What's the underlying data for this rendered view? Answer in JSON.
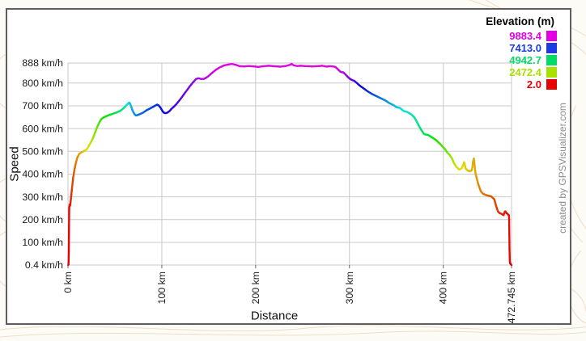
{
  "page": {
    "background_color": "#fdfbf5",
    "watermark_line_color": "#e7d5b8"
  },
  "chart": {
    "border_color": "#5e5e5e",
    "background_color": "#ffffff",
    "gridline_color": "#c9c9c9",
    "credit": "created by GPSVisualizer.com",
    "credit_color": "#8e8e8e"
  },
  "legend": {
    "title": "Elevation (m)",
    "items": [
      {
        "value": "9883.4",
        "color": "#E400E4"
      },
      {
        "value": "7413.0",
        "color": "#1C3AE6"
      },
      {
        "value": "4942.7",
        "color": "#00DC64"
      },
      {
        "value": "2472.4",
        "color": "#A8E000"
      },
      {
        "value": "2.0",
        "color": "#E60000"
      }
    ]
  },
  "chart_data": {
    "type": "line",
    "title": "",
    "xlabel": "Distance",
    "ylabel": "Speed",
    "x_unit": "km",
    "y_unit": "km/h",
    "xlim": [
      0,
      472.745
    ],
    "ylim": [
      0.4,
      888
    ],
    "grid": true,
    "legend_position": "top-right-inside",
    "color_by": "Elevation (m)",
    "color_ramp": {
      "domain": [
        2.0,
        9883.4
      ],
      "hue_range_deg": [
        0,
        300
      ],
      "low_color": "red",
      "high_color": "magenta"
    },
    "x_ticks": [
      {
        "value": 0,
        "label": "0 km"
      },
      {
        "value": 100,
        "label": "100 km"
      },
      {
        "value": 200,
        "label": "200 km"
      },
      {
        "value": 300,
        "label": "300 km"
      },
      {
        "value": 400,
        "label": "400 km"
      },
      {
        "value": 472.745,
        "label": "472.745 km"
      }
    ],
    "y_ticks": [
      {
        "value": 0.4,
        "label": "0.4 km/h"
      },
      {
        "value": 100,
        "label": "100 km/h"
      },
      {
        "value": 200,
        "label": "200 km/h"
      },
      {
        "value": 300,
        "label": "300 km/h"
      },
      {
        "value": 400,
        "label": "400 km/h"
      },
      {
        "value": 500,
        "label": "500 km/h"
      },
      {
        "value": 600,
        "label": "600 km/h"
      },
      {
        "value": 700,
        "label": "700 km/h"
      },
      {
        "value": 800,
        "label": "800 km/h"
      },
      {
        "value": 888,
        "label": "888 km/h"
      }
    ],
    "point_format": [
      "distance_km",
      "speed_kmh",
      "elevation_m"
    ],
    "points": [
      [
        0.2,
        0.4,
        2
      ],
      [
        0.6,
        3,
        2
      ],
      [
        0.9,
        60,
        5
      ],
      [
        1.1,
        170,
        20
      ],
      [
        1.3,
        252,
        60
      ],
      [
        1.8,
        266,
        110
      ],
      [
        2.3,
        262,
        160
      ],
      [
        2.8,
        278,
        250
      ],
      [
        3.4,
        302,
        340
      ],
      [
        4.3,
        338,
        480
      ],
      [
        5.5,
        384,
        650
      ],
      [
        6.5,
        410,
        780
      ],
      [
        7.5,
        432,
        900
      ],
      [
        8.6,
        452,
        1030
      ],
      [
        9.7,
        470,
        1150
      ],
      [
        11,
        481,
        1260
      ],
      [
        12,
        489,
        1350
      ],
      [
        13.7,
        494,
        1480
      ],
      [
        15.5,
        498,
        1600
      ],
      [
        17,
        501,
        1700
      ],
      [
        18.4,
        504,
        1800
      ],
      [
        19.5,
        508,
        1890
      ],
      [
        20.6,
        512,
        1980
      ],
      [
        21.6,
        519,
        2070
      ],
      [
        22.6,
        527,
        2150
      ],
      [
        23.7,
        535,
        2250
      ],
      [
        24.8,
        543,
        2350
      ],
      [
        25.9,
        552,
        2450
      ],
      [
        27,
        562,
        2550
      ],
      [
        28.1,
        574,
        2680
      ],
      [
        29.2,
        586,
        2800
      ],
      [
        30.2,
        597,
        2930
      ],
      [
        31.3,
        608,
        3050
      ],
      [
        32.3,
        617,
        3180
      ],
      [
        33.3,
        626,
        3300
      ],
      [
        34.4,
        634,
        3430
      ],
      [
        35.5,
        641,
        3550
      ],
      [
        37,
        646,
        3680
      ],
      [
        38.5,
        650,
        3800
      ],
      [
        40.6,
        654,
        3950
      ],
      [
        42.8,
        658,
        4100
      ],
      [
        44.9,
        661,
        4230
      ],
      [
        47,
        664,
        4350
      ],
      [
        49.2,
        667,
        4480
      ],
      [
        51.4,
        670,
        4600
      ],
      [
        53.5,
        674,
        4750
      ],
      [
        55.7,
        678,
        4900
      ],
      [
        57.1,
        682,
        5030
      ],
      [
        58.5,
        687,
        5150
      ],
      [
        59.9,
        692,
        5300
      ],
      [
        61.3,
        698,
        5450
      ],
      [
        62.4,
        703,
        5600
      ],
      [
        63.6,
        708,
        5750
      ],
      [
        64.5,
        712,
        5880
      ],
      [
        65.4,
        714,
        6000
      ],
      [
        66.4,
        708,
        6150
      ],
      [
        67.6,
        694,
        6300
      ],
      [
        68.8,
        680,
        6450
      ],
      [
        70.2,
        668,
        6600
      ],
      [
        71.2,
        662,
        6680
      ],
      [
        72.3,
        658,
        6750
      ],
      [
        74,
        659,
        6830
      ],
      [
        75.8,
        662,
        6900
      ],
      [
        78,
        666,
        6980
      ],
      [
        80,
        670,
        7050
      ],
      [
        82.2,
        676,
        7130
      ],
      [
        84.3,
        682,
        7200
      ],
      [
        86.5,
        686,
        7280
      ],
      [
        88.7,
        691,
        7350
      ],
      [
        91,
        696,
        7420
      ],
      [
        93,
        701,
        7480
      ],
      [
        95,
        705,
        7550
      ],
      [
        96.5,
        702,
        7620
      ],
      [
        98,
        695,
        7700
      ],
      [
        99.5,
        686,
        7790
      ],
      [
        100.8,
        676,
        7870
      ],
      [
        102.2,
        670,
        7950
      ],
      [
        103.4,
        668,
        8000
      ],
      [
        104.5,
        668,
        8050
      ],
      [
        105.9,
        670,
        8100
      ],
      [
        107.3,
        674,
        8150
      ],
      [
        108.7,
        679,
        8230
      ],
      [
        110.1,
        686,
        8300
      ],
      [
        112.3,
        694,
        8380
      ],
      [
        114.5,
        703,
        8450
      ],
      [
        116.6,
        713,
        8530
      ],
      [
        118.8,
        724,
        8600
      ],
      [
        121,
        736,
        8680
      ],
      [
        123.1,
        748,
        8750
      ],
      [
        125.2,
        760,
        8830
      ],
      [
        127.4,
        772,
        8900
      ],
      [
        129.5,
        784,
        8980
      ],
      [
        131.7,
        795,
        9050
      ],
      [
        133.2,
        803,
        9100
      ],
      [
        134.6,
        809,
        9150
      ],
      [
        136.6,
        818,
        9250
      ],
      [
        139,
        821,
        9350
      ],
      [
        141.8,
        818,
        9420
      ],
      [
        144.7,
        818,
        9480
      ],
      [
        146.2,
        821,
        9520
      ],
      [
        149,
        828,
        9560
      ],
      [
        153.2,
        843,
        9650
      ],
      [
        157.5,
        858,
        9750
      ],
      [
        161.8,
        869,
        9820
      ],
      [
        166.1,
        877,
        9860
      ],
      [
        170.4,
        881,
        9880
      ],
      [
        174.7,
        884,
        9880
      ],
      [
        179,
        880,
        9880
      ],
      [
        183,
        874,
        9880
      ],
      [
        188,
        873,
        9880
      ],
      [
        193,
        875,
        9880
      ],
      [
        198,
        873,
        9880
      ],
      [
        203,
        871,
        9880
      ],
      [
        208,
        874,
        9880
      ],
      [
        214,
        876,
        9880
      ],
      [
        220,
        874,
        9880
      ],
      [
        226,
        872,
        9880
      ],
      [
        232,
        875,
        9880
      ],
      [
        236.5,
        880,
        9883
      ],
      [
        238.5,
        884,
        9883
      ],
      [
        240.5,
        878,
        9880
      ],
      [
        244,
        875,
        9880
      ],
      [
        248,
        876,
        9880
      ],
      [
        252,
        875,
        9880
      ],
      [
        256,
        874,
        9880
      ],
      [
        260,
        873,
        9880
      ],
      [
        264,
        874,
        9880
      ],
      [
        268,
        875,
        9880
      ],
      [
        271,
        876,
        9880
      ],
      [
        273.5,
        874,
        9880
      ],
      [
        276,
        872,
        9880
      ],
      [
        278,
        874,
        9880
      ],
      [
        280,
        874,
        9880
      ],
      [
        282,
        873,
        9880
      ],
      [
        284,
        872,
        9875
      ],
      [
        285.5,
        869,
        9860
      ],
      [
        287,
        863,
        9800
      ],
      [
        288.5,
        857,
        9720
      ],
      [
        290,
        851,
        9650
      ],
      [
        291.5,
        848,
        9600
      ],
      [
        293.3,
        847,
        9500
      ],
      [
        294.5,
        843,
        9400
      ],
      [
        296,
        837,
        9300
      ],
      [
        297.5,
        830,
        9200
      ],
      [
        299,
        824,
        9080
      ],
      [
        300.5,
        819,
        8960
      ],
      [
        302,
        815,
        8850
      ],
      [
        303.5,
        812,
        8720
      ],
      [
        305,
        810,
        8600
      ],
      [
        306.5,
        805,
        8480
      ],
      [
        308,
        800,
        8360
      ],
      [
        309.5,
        794,
        8240
      ],
      [
        311,
        789,
        8120
      ],
      [
        312.5,
        784,
        8000
      ],
      [
        314,
        780,
        7900
      ],
      [
        316,
        774,
        7780
      ],
      [
        318,
        768,
        7650
      ],
      [
        320,
        762,
        7550
      ],
      [
        322,
        757,
        7450
      ],
      [
        324,
        752,
        7350
      ],
      [
        326,
        748,
        7270
      ],
      [
        328,
        744,
        7180
      ],
      [
        330,
        740,
        7100
      ],
      [
        332,
        736,
        7010
      ],
      [
        334,
        732,
        6930
      ],
      [
        336,
        728,
        6840
      ],
      [
        338,
        724,
        6760
      ],
      [
        340,
        719,
        6670
      ],
      [
        342,
        713,
        6580
      ],
      [
        344,
        709,
        6500
      ],
      [
        346,
        705,
        6410
      ],
      [
        348,
        700,
        6330
      ],
      [
        350,
        694,
        6240
      ],
      [
        352,
        692,
        6160
      ],
      [
        354,
        690,
        6070
      ],
      [
        356,
        683,
        5980
      ],
      [
        358,
        677,
        5900
      ],
      [
        360,
        675,
        5810
      ],
      [
        362,
        672,
        5730
      ],
      [
        364,
        667,
        5640
      ],
      [
        366,
        662,
        5550
      ],
      [
        367.5,
        656,
        5470
      ],
      [
        369,
        650,
        5380
      ],
      [
        370.5,
        640,
        5300
      ],
      [
        372.4,
        625,
        5200
      ],
      [
        373.7,
        615,
        5120
      ],
      [
        375,
        605,
        5040
      ],
      [
        376.3,
        596,
        4960
      ],
      [
        377.5,
        588,
        4880
      ],
      [
        378.5,
        582,
        4810
      ],
      [
        379.5,
        576,
        4740
      ],
      [
        381,
        574,
        4650
      ],
      [
        382.4,
        573,
        4560
      ],
      [
        383.8,
        572,
        4470
      ],
      [
        385,
        569,
        4390
      ],
      [
        386.2,
        566,
        4300
      ],
      [
        387.2,
        563,
        4220
      ],
      [
        388.2,
        561,
        4140
      ],
      [
        390.3,
        555,
        3980
      ],
      [
        392.4,
        549,
        3820
      ],
      [
        394.5,
        541,
        3660
      ],
      [
        396.7,
        532,
        3500
      ],
      [
        397.9,
        527,
        3420
      ],
      [
        399,
        522,
        3340
      ],
      [
        400.1,
        517,
        3260
      ],
      [
        401.2,
        513,
        3180
      ],
      [
        402.6,
        505,
        3070
      ],
      [
        404,
        496,
        2960
      ],
      [
        405.4,
        490,
        2850
      ],
      [
        406.8,
        484,
        2740
      ],
      [
        408.2,
        475,
        2630
      ],
      [
        409.6,
        466,
        2520
      ],
      [
        410.4,
        458,
        2460
      ],
      [
        411.2,
        449,
        2400
      ],
      [
        412.6,
        440,
        2300
      ],
      [
        414,
        432,
        2200
      ],
      [
        415.4,
        426,
        2120
      ],
      [
        416.9,
        420,
        2040
      ],
      [
        418.3,
        422,
        1990
      ],
      [
        419.8,
        426,
        1940
      ],
      [
        420.6,
        434,
        1910
      ],
      [
        421.4,
        442,
        1880
      ],
      [
        422,
        452,
        1860
      ],
      [
        422.6,
        448,
        1845
      ],
      [
        423.2,
        436,
        1825
      ],
      [
        423.8,
        425,
        1805
      ],
      [
        424.9,
        420,
        1765
      ],
      [
        426,
        416,
        1725
      ],
      [
        427.2,
        414,
        1685
      ],
      [
        428.4,
        413,
        1650
      ],
      [
        429.5,
        415,
        1620
      ],
      [
        430.5,
        418,
        1590
      ],
      [
        431,
        430,
        1570
      ],
      [
        431.6,
        452,
        1545
      ],
      [
        432.1,
        462,
        1525
      ],
      [
        432.6,
        468,
        1505
      ],
      [
        433.1,
        450,
        1480
      ],
      [
        433.6,
        430,
        1460
      ],
      [
        434,
        415,
        1430
      ],
      [
        434.4,
        402,
        1410
      ],
      [
        435,
        392,
        1380
      ],
      [
        435.6,
        383,
        1350
      ],
      [
        436.3,
        371,
        1300
      ],
      [
        437,
        360,
        1250
      ],
      [
        437.7,
        351,
        1200
      ],
      [
        438.4,
        343,
        1150
      ],
      [
        439.2,
        334,
        1120
      ],
      [
        440,
        325,
        1100
      ],
      [
        441.3,
        318,
        1050
      ],
      [
        442.6,
        313,
        1000
      ],
      [
        443.8,
        311,
        975
      ],
      [
        445,
        309,
        950
      ],
      [
        446.1,
        307,
        925
      ],
      [
        447.3,
        306,
        900
      ],
      [
        448.4,
        305,
        870
      ],
      [
        449.5,
        304,
        830
      ],
      [
        450.4,
        303,
        800
      ],
      [
        451.3,
        301,
        750
      ],
      [
        452.1,
        298,
        720
      ],
      [
        453,
        295,
        690
      ],
      [
        453.7,
        292,
        670
      ],
      [
        454.4,
        289,
        650
      ],
      [
        455,
        281,
        620
      ],
      [
        455.5,
        272,
        600
      ],
      [
        456.1,
        263,
        560
      ],
      [
        456.8,
        254,
        520
      ],
      [
        457.5,
        245,
        480
      ],
      [
        458.3,
        236,
        430
      ],
      [
        459.1,
        232,
        400
      ],
      [
        460,
        229,
        380
      ],
      [
        461.2,
        227,
        350
      ],
      [
        462.1,
        225,
        320
      ],
      [
        463,
        223,
        300
      ],
      [
        463.6,
        221,
        285
      ],
      [
        464.3,
        220,
        270
      ],
      [
        464.9,
        227,
        240
      ],
      [
        465.5,
        234,
        225
      ],
      [
        465.9,
        236,
        215
      ],
      [
        466.3,
        236,
        205
      ],
      [
        466.8,
        232,
        198
      ],
      [
        467.3,
        229,
        190
      ],
      [
        467.8,
        227,
        170
      ],
      [
        468.4,
        226,
        150
      ],
      [
        468.8,
        223,
        140
      ],
      [
        469.3,
        221,
        130
      ],
      [
        469.7,
        220,
        125
      ],
      [
        470,
        219,
        120
      ],
      [
        470.2,
        200,
        90
      ],
      [
        470.4,
        140,
        60
      ],
      [
        470.6,
        70,
        40
      ],
      [
        470.9,
        20,
        30
      ],
      [
        471.2,
        8,
        20
      ],
      [
        472,
        4,
        10
      ],
      [
        472.745,
        0.4,
        2
      ]
    ]
  }
}
